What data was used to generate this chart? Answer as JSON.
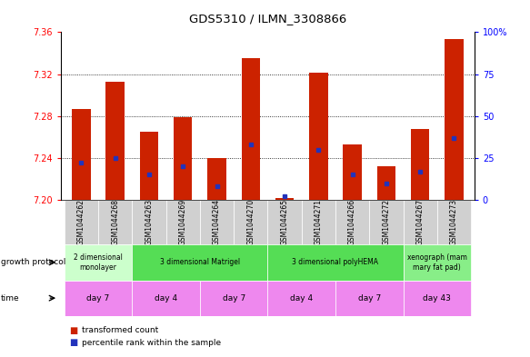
{
  "title": "GDS5310 / ILMN_3308866",
  "samples": [
    "GSM1044262",
    "GSM1044268",
    "GSM1044263",
    "GSM1044269",
    "GSM1044264",
    "GSM1044270",
    "GSM1044265",
    "GSM1044271",
    "GSM1044266",
    "GSM1044272",
    "GSM1044267",
    "GSM1044273"
  ],
  "transformed_counts": [
    7.287,
    7.313,
    7.265,
    7.279,
    7.24,
    7.335,
    7.202,
    7.321,
    7.253,
    7.232,
    7.268,
    7.353
  ],
  "percentile_ranks": [
    22,
    25,
    15,
    20,
    8,
    33,
    2,
    30,
    15,
    10,
    17,
    37
  ],
  "y_min": 7.2,
  "y_max": 7.36,
  "y_ticks": [
    7.2,
    7.24,
    7.28,
    7.32,
    7.36
  ],
  "bar_color": "#cc2200",
  "dot_color": "#2233bb",
  "groups": [
    {
      "label": "2 dimensional\nmonolayer",
      "start": 0,
      "end": 2,
      "color": "#ccffcc"
    },
    {
      "label": "3 dimensional Matrigel",
      "start": 2,
      "end": 6,
      "color": "#55dd55"
    },
    {
      "label": "3 dimensional polyHEMA",
      "start": 6,
      "end": 10,
      "color": "#55dd55"
    },
    {
      "label": "xenograph (mam\nmary fat pad)",
      "start": 10,
      "end": 12,
      "color": "#88ee88"
    }
  ],
  "time_groups": [
    {
      "label": "day 7",
      "start": 0,
      "end": 2,
      "color": "#ee88ee"
    },
    {
      "label": "day 4",
      "start": 2,
      "end": 4,
      "color": "#ee88ee"
    },
    {
      "label": "day 7",
      "start": 4,
      "end": 6,
      "color": "#ee88ee"
    },
    {
      "label": "day 4",
      "start": 6,
      "end": 8,
      "color": "#ee88ee"
    },
    {
      "label": "day 7",
      "start": 8,
      "end": 10,
      "color": "#ee88ee"
    },
    {
      "label": "day 43",
      "start": 10,
      "end": 12,
      "color": "#ee88ee"
    }
  ],
  "legend_items": [
    {
      "label": "transformed count",
      "color": "#cc2200"
    },
    {
      "label": "percentile rank within the sample",
      "color": "#2233bb"
    }
  ],
  "right_yticks": [
    0,
    25,
    50,
    75,
    100
  ],
  "right_yticklabels": [
    "0",
    "25",
    "50",
    "75",
    "100%"
  ]
}
